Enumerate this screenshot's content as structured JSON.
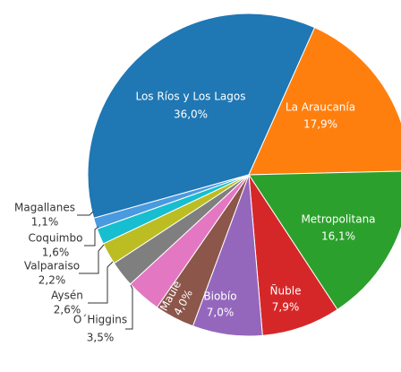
{
  "chart_data": {
    "type": "pie",
    "categories": [
      "Los Ríos y Los Lagos",
      "La Araucanía",
      "Metropolitana",
      "Ñuble",
      "Biobío",
      "Maule",
      "O´Higgins",
      "Aysén",
      "Valparaiso",
      "Coquimbo",
      "Magallanes"
    ],
    "values": [
      36.0,
      17.9,
      16.1,
      7.9,
      7.0,
      4.0,
      3.5,
      2.6,
      2.2,
      1.6,
      1.1
    ],
    "value_labels": [
      "36,0%",
      "17,9%",
      "16,1%",
      "7,9%",
      "7,0%",
      "4,0%",
      "3,5%",
      "2,6%",
      "2,2%",
      "1,6%",
      "1,1%"
    ],
    "colors": [
      "#1f77b4",
      "#ff7f0e",
      "#2ca02c",
      "#d62728",
      "#9467bd",
      "#8c564b",
      "#e377c2",
      "#7f7f7f",
      "#bcbd22",
      "#17becf",
      "#4a9ae0"
    ]
  }
}
